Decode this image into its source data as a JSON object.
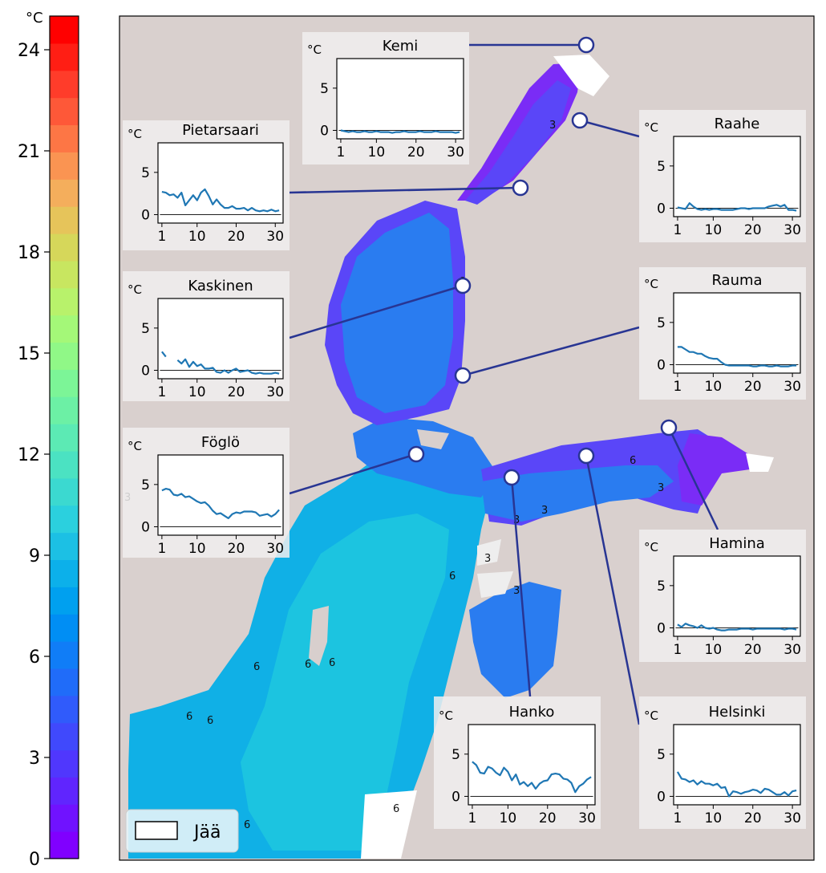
{
  "colorbar": {
    "unit": "°C",
    "min": 0,
    "max": 25,
    "ticks": [
      0,
      3,
      6,
      9,
      12,
      15,
      18,
      21,
      24
    ],
    "colors": [
      "#8000ff",
      "#7012ff",
      "#6025fe",
      "#5037fd",
      "#4049fc",
      "#305bfb",
      "#206cf9",
      "#107df7",
      "#008ef4",
      "#00a0ef",
      "#0cb0ea",
      "#1cc0e4",
      "#2bd0de",
      "#3bd9d0",
      "#4be2c2",
      "#5ceab4",
      "#6cf0a5",
      "#7cf597",
      "#90f887",
      "#a4f878",
      "#b8f26b",
      "#c8e660",
      "#d6d75a",
      "#e6c45a",
      "#f4ae5c",
      "#fa9452",
      "#fd7645",
      "#fe5838",
      "#ff3c2a",
      "#ff1e14",
      "#ff0000"
    ]
  },
  "legend": {
    "label": "Jää"
  },
  "map": {
    "contour_labels": [
      "3",
      "6",
      "3",
      "6",
      "3",
      "3",
      "3",
      "3",
      "3",
      "6",
      "6",
      "6",
      "6",
      "6",
      "6",
      "6",
      "6",
      "3"
    ]
  },
  "chart_data": [
    {
      "type": "line",
      "title": "Kemi",
      "ylabel": "°C",
      "ylim": [
        -1,
        8.5
      ],
      "xlim": [
        0,
        32
      ],
      "x_ticks": [
        1,
        10,
        20,
        30
      ],
      "y_ticks": [
        0,
        5
      ],
      "series": [
        {
          "values": [
            0.0,
            -0.1,
            -0.2,
            -0.1,
            -0.2,
            -0.2,
            -0.1,
            -0.2,
            -0.2,
            -0.1,
            -0.2,
            -0.2,
            -0.2,
            -0.3,
            -0.2,
            -0.2,
            -0.1,
            -0.2,
            -0.2,
            -0.2,
            -0.1,
            -0.2,
            -0.2,
            -0.2,
            -0.1,
            -0.2,
            -0.2,
            -0.2,
            -0.2,
            -0.3,
            -0.2
          ]
        }
      ]
    },
    {
      "type": "line",
      "title": "Pietarsaari",
      "ylabel": "°C",
      "ylim": [
        -1,
        8.5
      ],
      "xlim": [
        0,
        32
      ],
      "x_ticks": [
        1,
        10,
        20,
        30
      ],
      "y_ticks": [
        0,
        5
      ],
      "series": [
        {
          "values": [
            2.7,
            2.6,
            2.3,
            2.4,
            2.0,
            2.6,
            1.1,
            1.7,
            2.3,
            1.7,
            2.6,
            3.0,
            2.2,
            1.2,
            1.8,
            1.2,
            0.8,
            0.8,
            1.0,
            0.7,
            0.7,
            0.8,
            0.5,
            0.8,
            0.5,
            0.4,
            0.5,
            0.4,
            0.6,
            0.4,
            0.5
          ]
        }
      ]
    },
    {
      "type": "line",
      "title": "Raahe",
      "ylabel": "°C",
      "ylim": [
        -1,
        8.5
      ],
      "xlim": [
        0,
        32
      ],
      "x_ticks": [
        1,
        10,
        20,
        30
      ],
      "y_ticks": [
        0,
        5
      ],
      "series": [
        {
          "values": [
            0.1,
            0.0,
            -0.1,
            0.6,
            0.2,
            -0.1,
            -0.2,
            -0.1,
            -0.2,
            -0.1,
            -0.1,
            -0.2,
            -0.2,
            -0.2,
            -0.2,
            -0.1,
            0.0,
            0.0,
            -0.1,
            0.0,
            0.0,
            0.0,
            0.0,
            0.2,
            0.3,
            0.4,
            0.2,
            0.4,
            -0.2,
            -0.2,
            -0.3
          ]
        }
      ]
    },
    {
      "type": "line",
      "title": "Kaskinen",
      "ylabel": "°C",
      "ylim": [
        -1,
        8.5
      ],
      "xlim": [
        0,
        32
      ],
      "x_ticks": [
        1,
        10,
        20,
        30
      ],
      "y_ticks": [
        0,
        5
      ],
      "series": [
        {
          "values": [
            2.2,
            1.6,
            null,
            null,
            1.2,
            0.8,
            1.3,
            0.4,
            1.0,
            0.5,
            0.7,
            0.2,
            0.2,
            0.3,
            -0.2,
            -0.3,
            0.0,
            -0.3,
            0.0,
            0.2,
            -0.2,
            -0.1,
            0.0,
            -0.3,
            -0.4,
            -0.3,
            -0.4,
            -0.4,
            -0.4,
            -0.3,
            -0.4
          ]
        }
      ]
    },
    {
      "type": "line",
      "title": "Rauma",
      "ylabel": "°C",
      "ylim": [
        -1,
        8.5
      ],
      "xlim": [
        0,
        32
      ],
      "x_ticks": [
        1,
        10,
        20,
        30
      ],
      "y_ticks": [
        0,
        5
      ],
      "series": [
        {
          "values": [
            2.1,
            2.1,
            1.8,
            1.5,
            1.5,
            1.3,
            1.3,
            1.0,
            0.8,
            0.7,
            0.7,
            0.3,
            0.0,
            -0.1,
            -0.1,
            -0.1,
            -0.1,
            -0.1,
            -0.1,
            -0.2,
            -0.2,
            -0.1,
            -0.1,
            -0.2,
            -0.2,
            -0.1,
            -0.2,
            -0.2,
            -0.2,
            -0.1,
            -0.1
          ]
        }
      ]
    },
    {
      "type": "line",
      "title": "Föglö",
      "ylabel": "°C",
      "ylim": [
        -1,
        8.5
      ],
      "xlim": [
        0,
        32
      ],
      "x_ticks": [
        1,
        10,
        20,
        30
      ],
      "y_ticks": [
        0,
        5
      ],
      "series": [
        {
          "values": [
            4.3,
            4.5,
            4.4,
            3.8,
            3.7,
            3.9,
            3.5,
            3.6,
            3.3,
            3.0,
            2.8,
            2.9,
            2.5,
            1.9,
            1.5,
            1.6,
            1.3,
            1.0,
            1.5,
            1.7,
            1.6,
            1.8,
            1.8,
            1.8,
            1.7,
            1.3,
            1.4,
            1.5,
            1.2,
            1.5,
            2.0
          ]
        }
      ]
    },
    {
      "type": "line",
      "title": "Hamina",
      "ylabel": "°C",
      "ylim": [
        -1,
        8.5
      ],
      "xlim": [
        0,
        32
      ],
      "x_ticks": [
        1,
        10,
        20,
        30
      ],
      "y_ticks": [
        0,
        5
      ],
      "series": [
        {
          "values": [
            0.4,
            0.1,
            0.5,
            0.3,
            0.2,
            0.0,
            0.3,
            0.0,
            -0.1,
            0.0,
            -0.2,
            -0.3,
            -0.3,
            -0.2,
            -0.2,
            -0.2,
            -0.1,
            -0.1,
            -0.1,
            -0.2,
            -0.1,
            -0.1,
            -0.1,
            -0.1,
            -0.1,
            -0.1,
            -0.1,
            -0.2,
            -0.1,
            -0.1,
            -0.2
          ]
        }
      ]
    },
    {
      "type": "line",
      "title": "Hanko",
      "ylabel": "°C",
      "ylim": [
        -1,
        8.5
      ],
      "xlim": [
        0,
        32
      ],
      "x_ticks": [
        1,
        10,
        20,
        30
      ],
      "y_ticks": [
        0,
        5
      ],
      "series": [
        {
          "values": [
            4.1,
            3.7,
            2.8,
            2.7,
            3.5,
            3.3,
            2.8,
            2.5,
            3.4,
            2.9,
            1.9,
            2.6,
            1.4,
            1.7,
            1.2,
            1.6,
            0.9,
            1.5,
            1.8,
            1.9,
            2.6,
            2.7,
            2.6,
            2.1,
            2.0,
            1.6,
            0.5,
            1.2,
            1.5,
            2.0,
            2.3
          ]
        }
      ]
    },
    {
      "type": "line",
      "title": "Helsinki",
      "ylabel": "°C",
      "ylim": [
        -1,
        8.5
      ],
      "xlim": [
        0,
        32
      ],
      "x_ticks": [
        1,
        10,
        20,
        30
      ],
      "y_ticks": [
        0,
        5
      ],
      "series": [
        {
          "values": [
            2.9,
            2.1,
            2.0,
            1.7,
            1.9,
            1.4,
            1.8,
            1.5,
            1.5,
            1.3,
            1.5,
            1.0,
            1.1,
            0.0,
            0.6,
            0.5,
            0.3,
            0.5,
            0.6,
            0.8,
            0.7,
            0.4,
            0.9,
            0.8,
            0.5,
            0.2,
            0.2,
            0.5,
            0.1,
            0.6,
            0.7
          ]
        }
      ]
    }
  ],
  "style": {
    "water_dark": "#7a2cf6",
    "water_purple": "#5a46f8",
    "water_blue": "#2a7cf0",
    "water_light": "#10b0e6",
    "water_cyan": "#1cc4e0",
    "land": "#d8cfcd",
    "station_line": "#283593",
    "series_color": "#1f77b4"
  }
}
